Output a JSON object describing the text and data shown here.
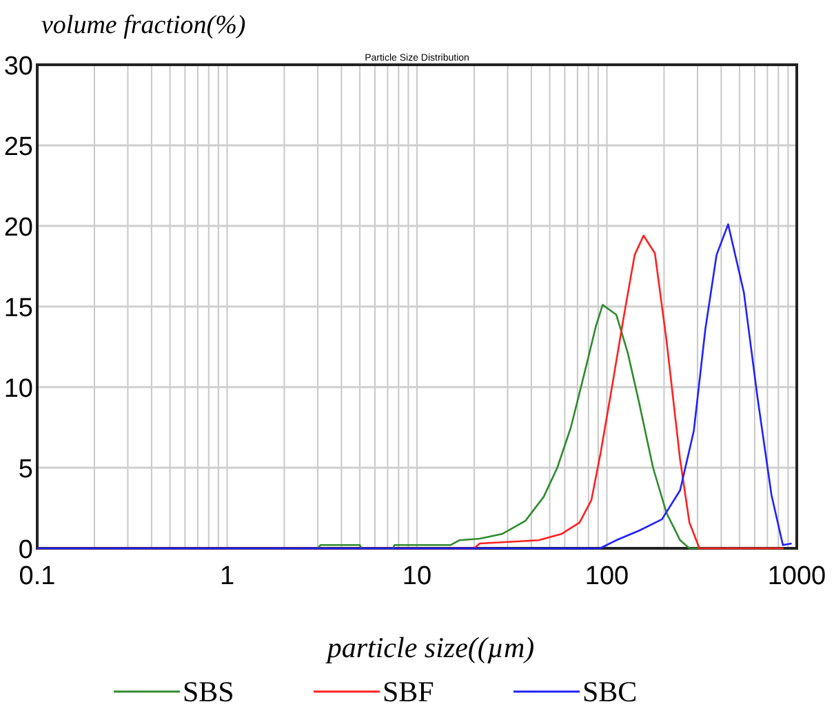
{
  "chart_data": {
    "type": "line",
    "title": "Particle Size Distribution",
    "xlabel": "particle size((µm)",
    "ylabel": "volume fraction(%)",
    "log": "x",
    "grid": true,
    "legend": "bottom",
    "line_style": "solid",
    "xlim": [
      0.1,
      1000
    ],
    "ylim": [
      0,
      30
    ],
    "xticks": [
      0.1,
      {
        "value": 0.2,
        "label": null
      },
      {
        "value": 0.3,
        "label": null
      },
      {
        "value": 0.4,
        "label": null
      },
      {
        "value": 0.5,
        "label": null
      },
      {
        "value": 0.6,
        "label": null
      },
      {
        "value": 0.7,
        "label": null
      },
      {
        "value": 0.8,
        "label": null
      },
      {
        "value": 0.9,
        "label": null
      },
      1,
      {
        "value": 2,
        "label": null
      },
      {
        "value": 3,
        "label": null
      },
      {
        "value": 4,
        "label": null
      },
      {
        "value": 5,
        "label": null
      },
      {
        "value": 6,
        "label": null
      },
      {
        "value": 7,
        "label": null
      },
      {
        "value": 8,
        "label": null
      },
      {
        "value": 9,
        "label": null
      },
      10,
      {
        "value": 20,
        "label": null
      },
      {
        "value": 30,
        "label": null
      },
      {
        "value": 40,
        "label": null
      },
      {
        "value": 50,
        "label": null
      },
      {
        "value": 60,
        "label": null
      },
      {
        "value": 70,
        "label": null
      },
      {
        "value": 80,
        "label": null
      },
      {
        "value": 90,
        "label": null
      },
      100,
      {
        "value": 200,
        "label": null
      },
      {
        "value": 300,
        "label": null
      },
      {
        "value": 400,
        "label": null
      },
      {
        "value": 500,
        "label": null
      },
      {
        "value": 600,
        "label": null
      },
      {
        "value": 700,
        "label": null
      },
      {
        "value": 800,
        "label": null
      },
      {
        "value": 900,
        "label": null
      },
      1000
    ],
    "yticks": [
      0,
      5,
      10,
      15,
      20,
      25,
      30
    ],
    "series": [
      {
        "name": "SBS",
        "color": "#2e8b2e",
        "x": [
          0.1,
          3,
          3.1,
          5,
          5.1,
          7.5,
          7.6,
          15,
          16.7,
          21.4,
          28.2,
          37.2,
          46.5,
          54.8,
          64.6,
          76.3,
          87.6,
          95,
          112,
          129,
          148,
          175,
          206,
          243,
          272,
          850
        ],
        "values": [
          0,
          0,
          0.2,
          0.2,
          0,
          0,
          0.2,
          0.2,
          0.5,
          0.6,
          0.9,
          1.7,
          3.2,
          5,
          7.5,
          10.9,
          13.8,
          15.1,
          14.5,
          12.1,
          9,
          5,
          2.2,
          0.5,
          0,
          0
        ]
      },
      {
        "name": "SBF",
        "color": "#ff2020",
        "x": [
          0.1,
          20,
          21.4,
          43.7,
          57.9,
          71.8,
          82.9,
          92.6,
          106,
          122,
          140,
          156,
          179,
          206,
          243,
          272,
          307,
          850
        ],
        "values": [
          0,
          0,
          0.3,
          0.5,
          0.9,
          1.6,
          3,
          5.9,
          9.9,
          14.2,
          18.2,
          19.4,
          18.3,
          12.9,
          5.5,
          1.6,
          0,
          0
        ]
      },
      {
        "name": "SBC",
        "color": "#2020ff",
        "x": [
          0.1,
          92,
          112,
          148,
          195,
          243,
          287,
          330,
          378,
          435,
          526,
          622,
          736,
          845,
          940
        ],
        "values": [
          0,
          0,
          0.5,
          1.1,
          1.8,
          3.6,
          7.3,
          13.6,
          18.2,
          20.1,
          15.9,
          9.3,
          3.3,
          0.2,
          0.3
        ]
      }
    ]
  }
}
